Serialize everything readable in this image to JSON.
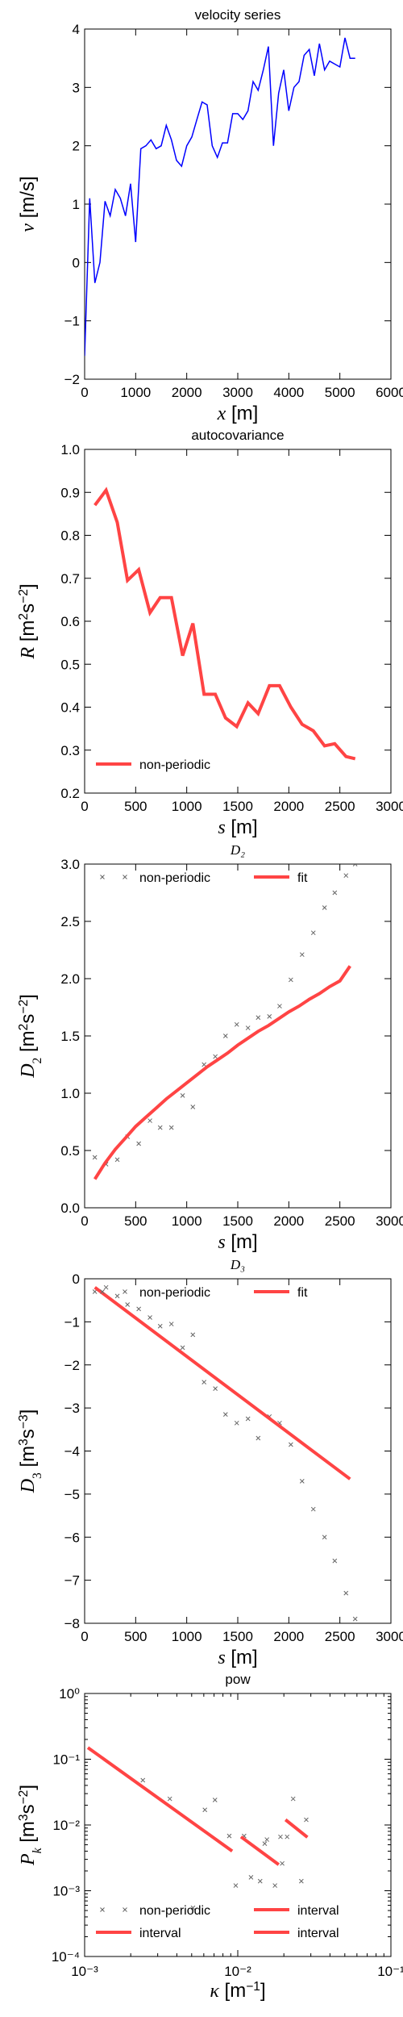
{
  "chart_data": [
    {
      "type": "line",
      "title": "velocity series",
      "xlabel": "x [m]",
      "ylabel": "v [m/s]",
      "xlim": [
        0,
        6000
      ],
      "ylim": [
        -2,
        4
      ],
      "xticks": [
        0,
        1000,
        2000,
        3000,
        4000,
        5000,
        6000
      ],
      "yticks": [
        -2,
        -1,
        0,
        1,
        2,
        3,
        4
      ],
      "series": [
        {
          "color": "#0000ff",
          "style": "line",
          "x": [
            0,
            100,
            200,
            300,
            400,
            500,
            600,
            700,
            800,
            900,
            1000,
            1100,
            1200,
            1300,
            1400,
            1500,
            1600,
            1700,
            1800,
            1900,
            2000,
            2100,
            2200,
            2300,
            2400,
            2500,
            2600,
            2700,
            2800,
            2900,
            3000,
            3100,
            3200,
            3300,
            3400,
            3500,
            3600,
            3700,
            3800,
            3900,
            4000,
            4100,
            4200,
            4300,
            4400,
            4500,
            4600,
            4700,
            4800,
            4900,
            5000,
            5100,
            5200,
            5300
          ],
          "y": [
            -1.6,
            1.1,
            -0.35,
            0.0,
            1.05,
            0.8,
            1.25,
            1.1,
            0.8,
            1.35,
            0.35,
            1.95,
            2.0,
            2.1,
            1.95,
            2.0,
            2.35,
            2.1,
            1.75,
            1.65,
            2.0,
            2.15,
            2.45,
            2.75,
            2.7,
            2.0,
            1.8,
            2.05,
            2.05,
            2.55,
            2.55,
            2.45,
            2.6,
            3.1,
            2.95,
            3.3,
            3.7,
            2.0,
            2.9,
            3.3,
            2.6,
            3.0,
            3.1,
            3.55,
            3.65,
            3.2,
            3.75,
            3.3,
            3.45,
            3.4,
            3.35,
            3.85,
            3.5,
            3.5
          ]
        }
      ]
    },
    {
      "type": "line",
      "title": "autocovariance",
      "xlabel": "s [m]",
      "ylabel": "R [m²s⁻²]",
      "xlim": [
        0,
        3000
      ],
      "ylim": [
        0.2,
        1.0
      ],
      "xticks": [
        0,
        500,
        1000,
        1500,
        2000,
        2500,
        3000
      ],
      "yticks": [
        0.2,
        0.3,
        0.4,
        0.5,
        0.6,
        0.7,
        0.8,
        0.9,
        1.0
      ],
      "legend": "lower-left",
      "series": [
        {
          "name": "non-periodic",
          "color": "#ff4444",
          "style": "line",
          "x": [
            100,
            210,
            320,
            420,
            530,
            640,
            740,
            850,
            960,
            1060,
            1170,
            1280,
            1380,
            1490,
            1600,
            1700,
            1810,
            1910,
            2020,
            2130,
            2240,
            2350,
            2450,
            2560,
            2650
          ],
          "y": [
            0.87,
            0.905,
            0.83,
            0.695,
            0.72,
            0.62,
            0.655,
            0.655,
            0.52,
            0.595,
            0.43,
            0.43,
            0.375,
            0.355,
            0.41,
            0.385,
            0.45,
            0.45,
            0.4,
            0.36,
            0.345,
            0.31,
            0.315,
            0.285,
            0.28
          ]
        }
      ]
    },
    {
      "type": "scatter",
      "title": "D₂",
      "xlabel": "s [m]",
      "ylabel": "D₂ [m²s⁻²]",
      "xlim": [
        0,
        3000
      ],
      "ylim": [
        0.0,
        3.0
      ],
      "xticks": [
        0,
        500,
        1000,
        1500,
        2000,
        2500,
        3000
      ],
      "yticks": [
        0.0,
        0.5,
        1.0,
        1.5,
        2.0,
        2.5,
        3.0
      ],
      "legend": "top",
      "series": [
        {
          "name": "non-periodic",
          "color": "#666666",
          "style": "marker",
          "x": [
            100,
            210,
            320,
            420,
            530,
            640,
            740,
            850,
            960,
            1060,
            1170,
            1280,
            1380,
            1490,
            1600,
            1700,
            1810,
            1910,
            2020,
            2130,
            2240,
            2350,
            2450,
            2560,
            2650
          ],
          "y": [
            0.44,
            0.38,
            0.42,
            0.62,
            0.56,
            0.76,
            0.7,
            0.7,
            0.98,
            0.88,
            1.25,
            1.32,
            1.5,
            1.6,
            1.57,
            1.66,
            1.67,
            1.76,
            1.99,
            2.21,
            2.4,
            2.62,
            2.75,
            2.9,
            3.0
          ]
        },
        {
          "name": "fit",
          "color": "#ff4444",
          "style": "line",
          "x": [
            100,
            200,
            300,
            400,
            500,
            600,
            700,
            800,
            900,
            1000,
            1100,
            1200,
            1300,
            1400,
            1500,
            1600,
            1700,
            1800,
            1900,
            2000,
            2100,
            2200,
            2300,
            2400,
            2500,
            2600
          ],
          "y": [
            0.25,
            0.39,
            0.51,
            0.61,
            0.71,
            0.79,
            0.87,
            0.95,
            1.02,
            1.09,
            1.16,
            1.23,
            1.29,
            1.35,
            1.42,
            1.48,
            1.54,
            1.59,
            1.65,
            1.71,
            1.76,
            1.82,
            1.87,
            1.93,
            1.98,
            2.11
          ]
        }
      ]
    },
    {
      "type": "scatter",
      "title": "D₃",
      "xlabel": "s [m]",
      "ylabel": "D₃ [m³s⁻³]",
      "xlim": [
        0,
        3000
      ],
      "ylim": [
        -8,
        0
      ],
      "xticks": [
        0,
        500,
        1000,
        1500,
        2000,
        2500,
        3000
      ],
      "yticks": [
        -8,
        -7,
        -6,
        -5,
        -4,
        -3,
        -2,
        -1,
        0
      ],
      "legend": "top",
      "series": [
        {
          "name": "non-periodic",
          "color": "#666666",
          "style": "marker",
          "x": [
            100,
            210,
            320,
            420,
            530,
            640,
            740,
            850,
            960,
            1060,
            1170,
            1280,
            1380,
            1490,
            1600,
            1700,
            1810,
            1910,
            2020,
            2130,
            2240,
            2350,
            2450,
            2560,
            2650
          ],
          "y": [
            -0.3,
            -0.2,
            -0.4,
            -0.6,
            -0.7,
            -0.9,
            -1.1,
            -1.05,
            -1.6,
            -1.3,
            -2.4,
            -2.55,
            -3.15,
            -3.35,
            -3.25,
            -3.7,
            -3.2,
            -3.35,
            -3.85,
            -4.7,
            -5.35,
            -6.0,
            -6.55,
            -7.3,
            -7.9
          ]
        },
        {
          "name": "fit",
          "color": "#ff4444",
          "style": "line",
          "x": [
            100,
            2600
          ],
          "y": [
            -0.2,
            -4.65
          ]
        }
      ]
    },
    {
      "type": "scatter",
      "title": "pow",
      "xlabel": "κ [m⁻¹]",
      "ylabel": "P_k [m³s⁻²]",
      "xscale": "log",
      "yscale": "log",
      "xlim": [
        0.001,
        0.1
      ],
      "ylim": [
        0.0001,
        1
      ],
      "xtick_labels": [
        "10⁻³",
        "10⁻²",
        "10⁻¹"
      ],
      "ytick_labels": [
        "10⁻⁴",
        "10⁻³",
        "10⁻²",
        "10⁻¹",
        "10⁰"
      ],
      "legend": "lower",
      "series": [
        {
          "name": "non-periodic",
          "color": "#666666",
          "style": "marker",
          "x": [
            0.0024,
            0.0036,
            0.0051,
            0.0061,
            0.0071,
            0.0088,
            0.0097,
            0.011,
            0.0122,
            0.014,
            0.0155,
            0.0175,
            0.019,
            0.021,
            0.023,
            0.026,
            0.028,
            0.015,
            0.0195
          ],
          "y": [
            0.048,
            0.025,
            0.00055,
            0.017,
            0.024,
            0.0068,
            0.0012,
            0.0068,
            0.0016,
            0.0014,
            0.006,
            0.0012,
            0.0066,
            0.0066,
            0.025,
            0.0014,
            0.012,
            0.0052,
            0.0026
          ]
        },
        {
          "name": "interval",
          "color": "#ff4444",
          "style": "line",
          "x": [
            0.00105,
            0.0092
          ],
          "y": [
            0.15,
            0.004
          ]
        },
        {
          "name": "interval",
          "color": "#ff4444",
          "style": "line",
          "x": [
            0.0105,
            0.0185
          ],
          "y": [
            0.0066,
            0.0025
          ]
        },
        {
          "name": "interval",
          "color": "#ff4444",
          "style": "line",
          "x": [
            0.0205,
            0.0285
          ],
          "y": [
            0.012,
            0.0065
          ]
        }
      ]
    }
  ]
}
